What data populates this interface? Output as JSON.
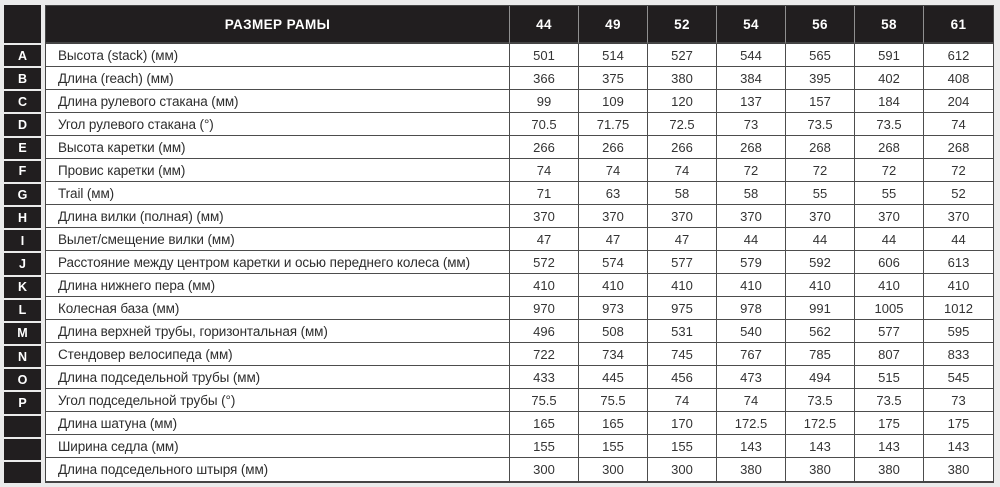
{
  "table": {
    "header": {
      "title": "РАЗМЕР РАМЫ",
      "sizes": [
        "44",
        "49",
        "52",
        "54",
        "56",
        "58",
        "61"
      ]
    },
    "rows": [
      {
        "letter": "A",
        "label": "Высота (stack) (мм)",
        "values": [
          "501",
          "514",
          "527",
          "544",
          "565",
          "591",
          "612"
        ]
      },
      {
        "letter": "B",
        "label": "Длина (reach) (мм)",
        "values": [
          "366",
          "375",
          "380",
          "384",
          "395",
          "402",
          "408"
        ]
      },
      {
        "letter": "C",
        "label": "Длина рулевого стакана (мм)",
        "values": [
          "99",
          "109",
          "120",
          "137",
          "157",
          "184",
          "204"
        ]
      },
      {
        "letter": "D",
        "label": "Угол рулевого стакана (°)",
        "values": [
          "70.5",
          "71.75",
          "72.5",
          "73",
          "73.5",
          "73.5",
          "74"
        ]
      },
      {
        "letter": "E",
        "label": "Высота каретки (мм)",
        "values": [
          "266",
          "266",
          "266",
          "268",
          "268",
          "268",
          "268"
        ]
      },
      {
        "letter": "F",
        "label": "Провис каретки (мм)",
        "values": [
          "74",
          "74",
          "74",
          "72",
          "72",
          "72",
          "72"
        ]
      },
      {
        "letter": "G",
        "label": "Trail (мм)",
        "values": [
          "71",
          "63",
          "58",
          "58",
          "55",
          "55",
          "52"
        ]
      },
      {
        "letter": "H",
        "label": "Длина вилки (полная) (мм)",
        "values": [
          "370",
          "370",
          "370",
          "370",
          "370",
          "370",
          "370"
        ]
      },
      {
        "letter": "I",
        "label": "Вылет/смещение вилки (мм)",
        "values": [
          "47",
          "47",
          "47",
          "44",
          "44",
          "44",
          "44"
        ]
      },
      {
        "letter": "J",
        "label": "Расстояние между центром каретки и осью переднего колеса (мм)",
        "values": [
          "572",
          "574",
          "577",
          "579",
          "592",
          "606",
          "613"
        ]
      },
      {
        "letter": "K",
        "label": "Длина нижнего пера (мм)",
        "values": [
          "410",
          "410",
          "410",
          "410",
          "410",
          "410",
          "410"
        ]
      },
      {
        "letter": "L",
        "label": "Колесная база (мм)",
        "values": [
          "970",
          "973",
          "975",
          "978",
          "991",
          "1005",
          "1012"
        ]
      },
      {
        "letter": "M",
        "label": "Длина верхней трубы, горизонтальная (мм)",
        "values": [
          "496",
          "508",
          "531",
          "540",
          "562",
          "577",
          "595"
        ]
      },
      {
        "letter": "N",
        "label": "Стендовер велосипеда (мм)",
        "values": [
          "722",
          "734",
          "745",
          "767",
          "785",
          "807",
          "833"
        ]
      },
      {
        "letter": "O",
        "label": "Длина подседельной трубы (мм)",
        "values": [
          "433",
          "445",
          "456",
          "473",
          "494",
          "515",
          "545"
        ]
      },
      {
        "letter": "P",
        "label": "Угол подседельной трубы (°)",
        "values": [
          "75.5",
          "75.5",
          "74",
          "74",
          "73.5",
          "73.5",
          "73"
        ]
      },
      {
        "letter": "",
        "label": "Длина шатуна (мм)",
        "values": [
          "165",
          "165",
          "170",
          "172.5",
          "172.5",
          "175",
          "175"
        ]
      },
      {
        "letter": "",
        "label": "Ширина седла (мм)",
        "values": [
          "155",
          "155",
          "155",
          "143",
          "143",
          "143",
          "143"
        ]
      },
      {
        "letter": "",
        "label": "Длина подседельного штыря (мм)",
        "values": [
          "300",
          "300",
          "300",
          "380",
          "380",
          "380",
          "380"
        ]
      }
    ]
  },
  "colors": {
    "header_bg": "#211e1f",
    "border": "#4d4d4d",
    "header_divider": "#8f8f8f",
    "text": "#333333",
    "page_bg": "#ebebeb"
  }
}
